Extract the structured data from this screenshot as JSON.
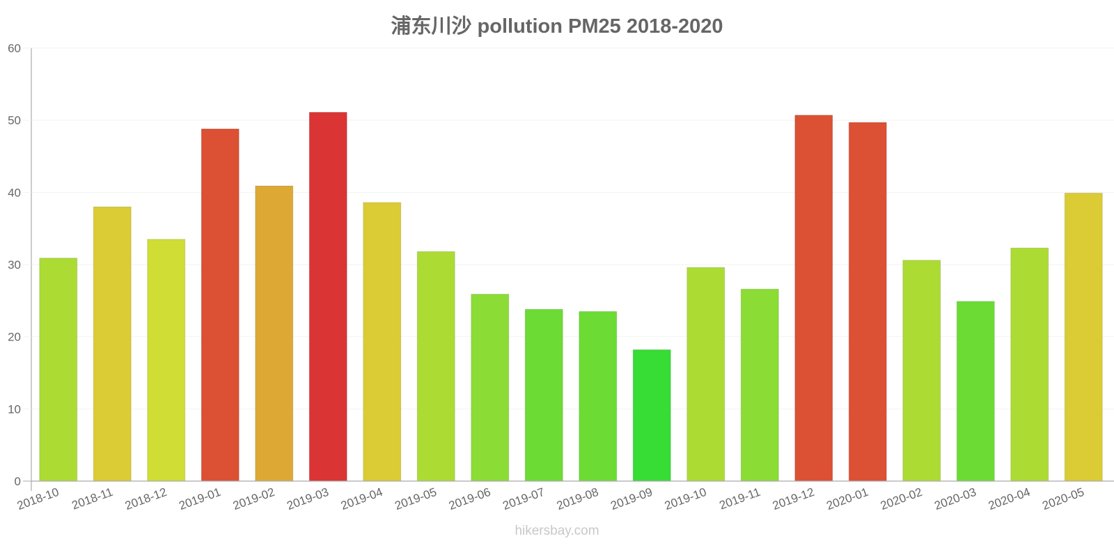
{
  "title": "浦东川沙 pollution PM25 2018-2020",
  "watermark": "hikersbay.com",
  "chart_data": {
    "type": "bar",
    "title": "浦东川沙 pollution PM25 2018-2020",
    "xlabel": "",
    "ylabel": "",
    "ylim": [
      0,
      60
    ],
    "yticks": [
      0,
      10,
      20,
      30,
      40,
      50,
      60
    ],
    "grid": true,
    "legend": "none",
    "categories": [
      "2018-10",
      "2018-11",
      "2018-12",
      "2019-01",
      "2019-02",
      "2019-03",
      "2019-04",
      "2019-05",
      "2019-06",
      "2019-07",
      "2019-08",
      "2019-09",
      "2019-10",
      "2019-11",
      "2019-12",
      "2020-01",
      "2020-02",
      "2020-03",
      "2020-04",
      "2020-05"
    ],
    "values": [
      30.9,
      38.0,
      33.5,
      48.8,
      40.9,
      51.1,
      38.6,
      31.8,
      25.9,
      23.8,
      23.5,
      18.2,
      29.6,
      26.6,
      50.7,
      49.7,
      30.6,
      24.9,
      32.3,
      39.9
    ],
    "colors": [
      "#acdc34",
      "#dbcb34",
      "#cfdd34",
      "#dc5034",
      "#dda834",
      "#da3434",
      "#dbcb34",
      "#acdc34",
      "#8bdc34",
      "#6cdc34",
      "#6cdc34",
      "#37dc34",
      "#acdc34",
      "#8bdc34",
      "#dc5034",
      "#dc5034",
      "#acdc34",
      "#6cdc34",
      "#acdc34",
      "#dbcb34"
    ]
  }
}
